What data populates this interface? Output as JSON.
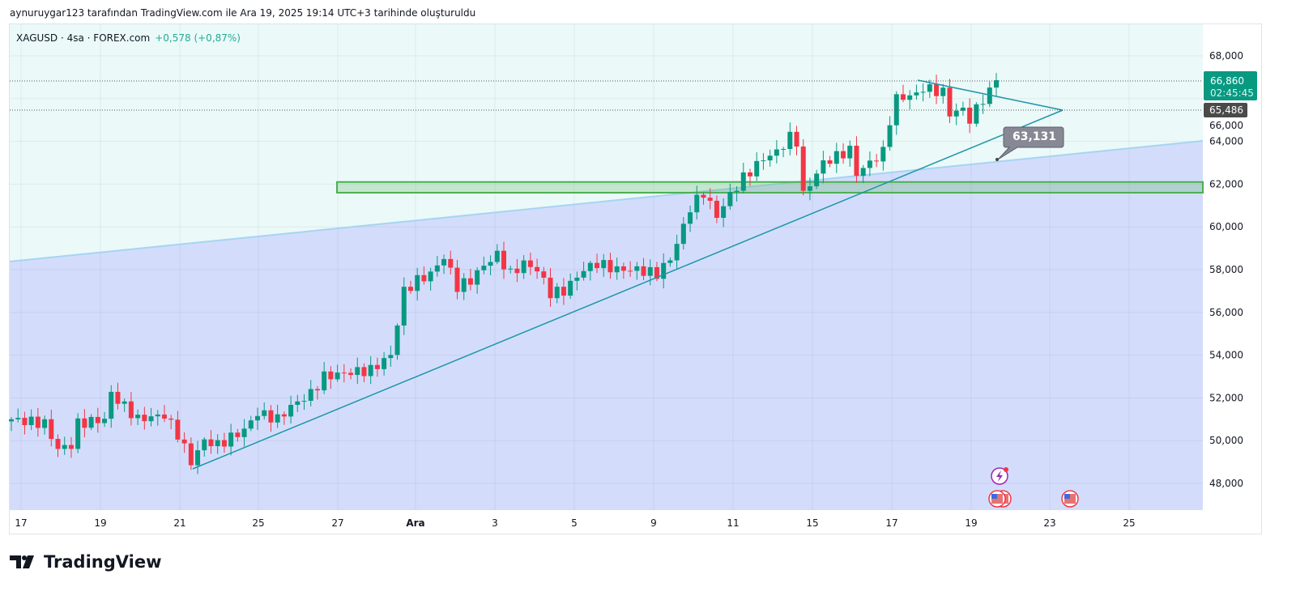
{
  "header": {
    "credit": "aynuruygar123 tarafından TradingView.com ile Ara 19, 2025 19:14 UTC+3 tarihinde oluşturuldu"
  },
  "legend": {
    "symbol": "XAGUSD · 4sa · FOREX.com",
    "change": "+0,578 (+0,87%)"
  },
  "footer": {
    "brand": "TradingView"
  },
  "colors": {
    "up": "#089981",
    "down": "#f23645",
    "channel_fill": "#d3ddfb",
    "bg_upper": "#ebf9f9",
    "zone": "#4caf50",
    "trend": "#1e96a8"
  },
  "chart_data": {
    "type": "candlestick",
    "symbol": "XAGUSD",
    "interval": "4h",
    "y_ticks": [
      "68,000",
      "66,000",
      "64,000",
      "62,000",
      "60,000",
      "58,000",
      "56,000",
      "54,000",
      "52,000",
      "50,000",
      "48,000"
    ],
    "y_tick_values": [
      68,
      66,
      64,
      62,
      60,
      58,
      56,
      54,
      52,
      50,
      48
    ],
    "ylim": [
      46.9,
      69.5
    ],
    "x_ticks": [
      "17",
      "19",
      "21",
      "25",
      "27",
      "Ara",
      "3",
      "5",
      "9",
      "11",
      "15",
      "17",
      "19",
      "23",
      "25"
    ],
    "close_path_thousands": [
      [
        0,
        51.0
      ],
      [
        5,
        50.8
      ],
      [
        7,
        49.6
      ],
      [
        9,
        49.8
      ],
      [
        10,
        50.8
      ],
      [
        14,
        51.0
      ],
      [
        15,
        52.2
      ],
      [
        17,
        51.6
      ],
      [
        19,
        51.0
      ],
      [
        23,
        51.2
      ],
      [
        25,
        50.3
      ],
      [
        27,
        49.0
      ],
      [
        29,
        50.0
      ],
      [
        31,
        49.8
      ],
      [
        35,
        50.5
      ],
      [
        37,
        51.3
      ],
      [
        40,
        51.0
      ],
      [
        42,
        51.6
      ],
      [
        45,
        52.2
      ],
      [
        47,
        53.0
      ],
      [
        51,
        53.2
      ],
      [
        54,
        53.3
      ],
      [
        57,
        54.0
      ],
      [
        58,
        55.5
      ],
      [
        59,
        57.0
      ],
      [
        61,
        57.5
      ],
      [
        63,
        57.8
      ],
      [
        65,
        58.6
      ],
      [
        67,
        57.2
      ],
      [
        69,
        57.5
      ],
      [
        71,
        58.2
      ],
      [
        73,
        58.7
      ],
      [
        75,
        57.8
      ],
      [
        77,
        58.3
      ],
      [
        79,
        58.0
      ],
      [
        81,
        56.9
      ],
      [
        83,
        57.0
      ],
      [
        86,
        58.0
      ],
      [
        88,
        58.3
      ],
      [
        91,
        58.0
      ],
      [
        94,
        58.0
      ],
      [
        97,
        57.8
      ],
      [
        99,
        58.5
      ],
      [
        101,
        60.0
      ],
      [
        102,
        60.9
      ],
      [
        104,
        61.6
      ],
      [
        106,
        60.5
      ],
      [
        108,
        61.5
      ],
      [
        110,
        62.3
      ],
      [
        113,
        63.2
      ],
      [
        115,
        63.5
      ],
      [
        117,
        64.2
      ],
      [
        118,
        64.0
      ],
      [
        119,
        61.5
      ],
      [
        120,
        62.0
      ],
      [
        122,
        63.0
      ],
      [
        124,
        63.3
      ],
      [
        126,
        63.6
      ],
      [
        127,
        62.5
      ],
      [
        129,
        63.0
      ],
      [
        131,
        63.5
      ],
      [
        132,
        65.0
      ],
      [
        133,
        66.0
      ],
      [
        136,
        66.2
      ],
      [
        137,
        66.5
      ],
      [
        140,
        66.3
      ],
      [
        141,
        65.3
      ],
      [
        143,
        65.5
      ],
      [
        144,
        65.0
      ],
      [
        146,
        66.0
      ],
      [
        147,
        66.3
      ],
      [
        148,
        66.86
      ]
    ],
    "last_price": "66,860",
    "countdown": "02:45:45",
    "level_label": "65,486",
    "callout": "63,131",
    "zone": {
      "top": 62.1,
      "bottom": 61.6
    }
  }
}
